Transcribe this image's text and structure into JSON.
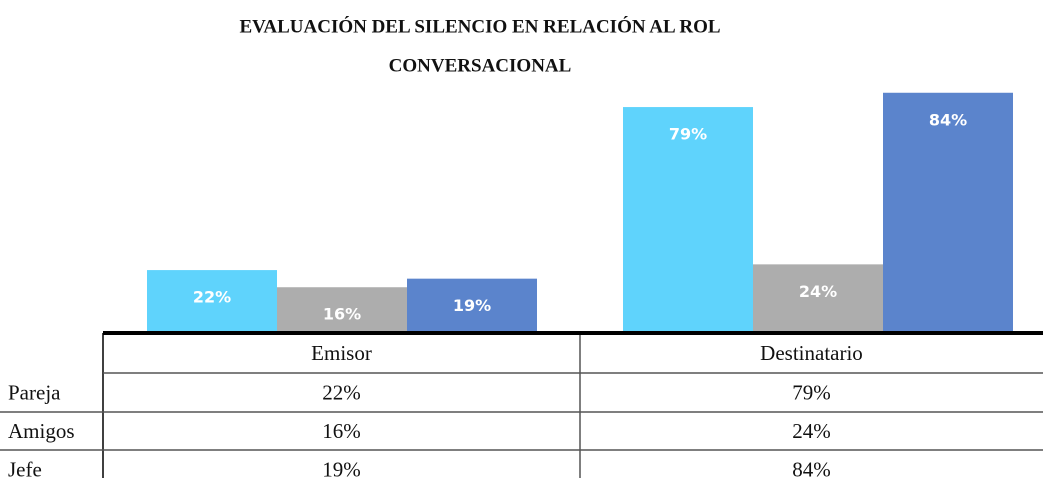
{
  "chart_data": {
    "type": "bar",
    "title": "EVALUACIÓN DEL SILENCIO EN RELACIÓN AL ROL",
    "subtitle": "CONVERSACIONAL",
    "categories": [
      "Emisor",
      "Destinatario"
    ],
    "series": [
      {
        "name": "Pareja",
        "color": "#5fd3fc",
        "values": [
          22,
          79
        ],
        "value_labels": [
          "22%",
          "79%"
        ]
      },
      {
        "name": "Amigos",
        "color": "#adadad",
        "values": [
          16,
          24
        ],
        "value_labels": [
          "16%",
          "24%"
        ]
      },
      {
        "name": "Jefe",
        "color": "#5b84cc",
        "values": [
          19,
          84
        ],
        "value_labels": [
          "19%",
          "84%"
        ]
      }
    ],
    "ylim": [
      0,
      100
    ]
  }
}
